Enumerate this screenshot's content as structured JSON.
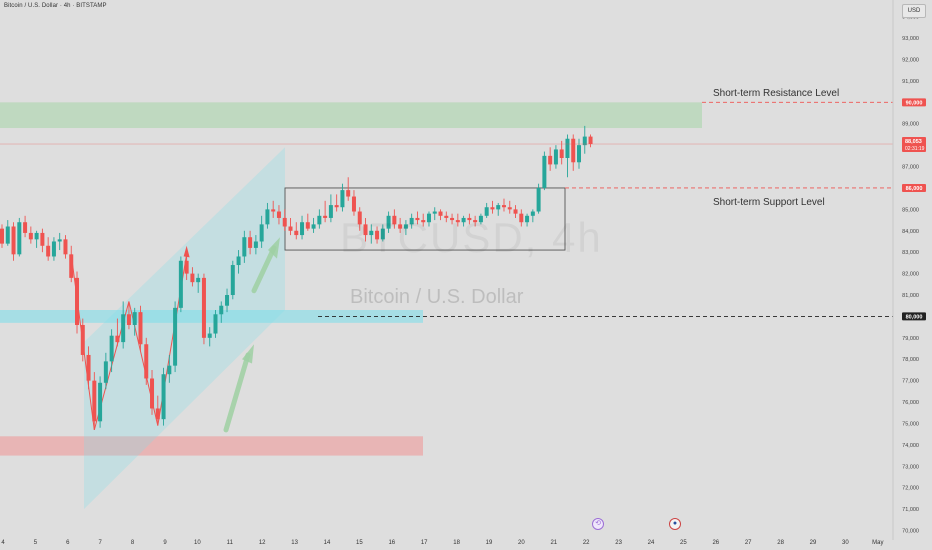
{
  "header": {
    "symbol_title": "Bitcoin / U.S. Dollar · 4h · BITSTAMP",
    "currency_label": "USD"
  },
  "watermark": {
    "ticker": "BTCUSD, 4h",
    "name": "Bitcoin / U.S. Dollar"
  },
  "annotations": {
    "resistance": "Short-term Resistance Level",
    "support": "Short-term Support Level"
  },
  "price_badges": {
    "resistance": "90,000",
    "current_price": "88,053",
    "countdown": "02:31:19",
    "support": "86,000",
    "key_level": "80,000"
  },
  "colors": {
    "up": "#26a69a",
    "down": "#ef5350",
    "resistance_zone": "#a5d6a7",
    "support_zone": "#ef9a9a",
    "channel": "#80deea"
  },
  "chart_data": {
    "type": "candlestick",
    "y_axis": {
      "ylim": [
        70000,
        94500
      ],
      "ticks": [
        "94,000",
        "93,000",
        "92,000",
        "91,000",
        "90,000",
        "89,000",
        "88,000",
        "87,000",
        "86,000",
        "85,000",
        "84,000",
        "83,000",
        "82,000",
        "81,000",
        "80,000",
        "79,000",
        "78,000",
        "77,000",
        "76,000",
        "75,000",
        "74,000",
        "73,000",
        "72,000",
        "71,000",
        "70,000"
      ]
    },
    "x_axis": {
      "ticks": [
        "4",
        "5",
        "6",
        "7",
        "8",
        "9",
        "10",
        "11",
        "12",
        "13",
        "14",
        "15",
        "16",
        "17",
        "18",
        "19",
        "20",
        "21",
        "22",
        "23",
        "24",
        "25",
        "26",
        "27",
        "28",
        "29",
        "30",
        "May"
      ]
    },
    "candles": [
      {
        "o": 84100,
        "h": 84300,
        "l": 83200,
        "c": 83400
      },
      {
        "o": 83400,
        "h": 84500,
        "l": 83300,
        "c": 84200
      },
      {
        "o": 84200,
        "h": 84400,
        "l": 82600,
        "c": 82900
      },
      {
        "o": 82900,
        "h": 84600,
        "l": 82800,
        "c": 84400
      },
      {
        "o": 84400,
        "h": 84700,
        "l": 83700,
        "c": 83900
      },
      {
        "o": 83900,
        "h": 84200,
        "l": 83400,
        "c": 83600
      },
      {
        "o": 83600,
        "h": 84000,
        "l": 83200,
        "c": 83900
      },
      {
        "o": 83900,
        "h": 84100,
        "l": 83000,
        "c": 83300
      },
      {
        "o": 83300,
        "h": 83700,
        "l": 82600,
        "c": 82800
      },
      {
        "o": 82800,
        "h": 83700,
        "l": 82600,
        "c": 83500
      },
      {
        "o": 83500,
        "h": 83900,
        "l": 83100,
        "c": 83600
      },
      {
        "o": 83600,
        "h": 83800,
        "l": 82700,
        "c": 82900
      },
      {
        "o": 82900,
        "h": 83300,
        "l": 81600,
        "c": 81800
      },
      {
        "o": 81800,
        "h": 82100,
        "l": 79200,
        "c": 79600
      },
      {
        "o": 79600,
        "h": 79900,
        "l": 77900,
        "c": 78200
      },
      {
        "o": 78200,
        "h": 78600,
        "l": 76600,
        "c": 77000
      },
      {
        "o": 77000,
        "h": 77400,
        "l": 74700,
        "c": 75100
      },
      {
        "o": 75100,
        "h": 77200,
        "l": 74800,
        "c": 76900
      },
      {
        "o": 76900,
        "h": 78300,
        "l": 76600,
        "c": 77900
      },
      {
        "o": 77900,
        "h": 79400,
        "l": 77400,
        "c": 79100
      },
      {
        "o": 79100,
        "h": 79900,
        "l": 78600,
        "c": 78800
      },
      {
        "o": 78800,
        "h": 80700,
        "l": 78500,
        "c": 80100
      },
      {
        "o": 80100,
        "h": 80600,
        "l": 79400,
        "c": 79600
      },
      {
        "o": 79600,
        "h": 80400,
        "l": 79100,
        "c": 80200
      },
      {
        "o": 80200,
        "h": 80500,
        "l": 78400,
        "c": 78700
      },
      {
        "o": 78700,
        "h": 79000,
        "l": 76800,
        "c": 77100
      },
      {
        "o": 77100,
        "h": 77500,
        "l": 75400,
        "c": 75700
      },
      {
        "o": 75700,
        "h": 76300,
        "l": 74900,
        "c": 75200
      },
      {
        "o": 75200,
        "h": 77600,
        "l": 74900,
        "c": 77300
      },
      {
        "o": 77300,
        "h": 78200,
        "l": 76900,
        "c": 77700
      },
      {
        "o": 77700,
        "h": 80700,
        "l": 77400,
        "c": 80400
      },
      {
        "o": 80400,
        "h": 82800,
        "l": 80200,
        "c": 82600
      },
      {
        "o": 82600,
        "h": 82900,
        "l": 81700,
        "c": 82000
      },
      {
        "o": 82000,
        "h": 82300,
        "l": 81400,
        "c": 81600
      },
      {
        "o": 81600,
        "h": 82000,
        "l": 81100,
        "c": 81800
      },
      {
        "o": 81800,
        "h": 82000,
        "l": 78700,
        "c": 79000
      },
      {
        "o": 79000,
        "h": 79500,
        "l": 78600,
        "c": 79200
      },
      {
        "o": 79200,
        "h": 80300,
        "l": 79000,
        "c": 80100
      },
      {
        "o": 80100,
        "h": 80700,
        "l": 79700,
        "c": 80500
      },
      {
        "o": 80500,
        "h": 81300,
        "l": 80200,
        "c": 81000
      },
      {
        "o": 81000,
        "h": 82600,
        "l": 80800,
        "c": 82400
      },
      {
        "o": 82400,
        "h": 83100,
        "l": 82000,
        "c": 82800
      },
      {
        "o": 82800,
        "h": 84000,
        "l": 82500,
        "c": 83700
      },
      {
        "o": 83700,
        "h": 84000,
        "l": 82900,
        "c": 83200
      },
      {
        "o": 83200,
        "h": 83800,
        "l": 82900,
        "c": 83500
      },
      {
        "o": 83500,
        "h": 84700,
        "l": 83200,
        "c": 84300
      },
      {
        "o": 84300,
        "h": 85300,
        "l": 84100,
        "c": 85000
      },
      {
        "o": 85000,
        "h": 85400,
        "l": 84600,
        "c": 84900
      },
      {
        "o": 84900,
        "h": 85200,
        "l": 84300,
        "c": 84600
      },
      {
        "o": 84600,
        "h": 85000,
        "l": 84000,
        "c": 84200
      },
      {
        "o": 84200,
        "h": 84600,
        "l": 83800,
        "c": 84000
      },
      {
        "o": 84000,
        "h": 84400,
        "l": 83600,
        "c": 83800
      },
      {
        "o": 83800,
        "h": 84700,
        "l": 83600,
        "c": 84400
      },
      {
        "o": 84400,
        "h": 84800,
        "l": 84000,
        "c": 84100
      },
      {
        "o": 84100,
        "h": 84600,
        "l": 83900,
        "c": 84300
      },
      {
        "o": 84300,
        "h": 85000,
        "l": 84100,
        "c": 84700
      },
      {
        "o": 84700,
        "h": 85400,
        "l": 84400,
        "c": 84600
      },
      {
        "o": 84600,
        "h": 85700,
        "l": 84400,
        "c": 85200
      },
      {
        "o": 85200,
        "h": 85700,
        "l": 84900,
        "c": 85100
      },
      {
        "o": 85100,
        "h": 86200,
        "l": 84900,
        "c": 85900
      },
      {
        "o": 85900,
        "h": 86500,
        "l": 85400,
        "c": 85600
      },
      {
        "o": 85600,
        "h": 85900,
        "l": 84700,
        "c": 84900
      },
      {
        "o": 84900,
        "h": 85100,
        "l": 84000,
        "c": 84300
      },
      {
        "o": 84300,
        "h": 84600,
        "l": 83500,
        "c": 83800
      },
      {
        "o": 83800,
        "h": 84300,
        "l": 83400,
        "c": 84000
      },
      {
        "o": 84000,
        "h": 84200,
        "l": 83400,
        "c": 83600
      },
      {
        "o": 83600,
        "h": 84300,
        "l": 83500,
        "c": 84100
      },
      {
        "o": 84100,
        "h": 84900,
        "l": 83900,
        "c": 84700
      },
      {
        "o": 84700,
        "h": 85000,
        "l": 84100,
        "c": 84300
      },
      {
        "o": 84300,
        "h": 84600,
        "l": 83900,
        "c": 84100
      },
      {
        "o": 84100,
        "h": 84500,
        "l": 83800,
        "c": 84300
      },
      {
        "o": 84300,
        "h": 84800,
        "l": 84100,
        "c": 84600
      },
      {
        "o": 84600,
        "h": 84900,
        "l": 84300,
        "c": 84500
      },
      {
        "o": 84500,
        "h": 84800,
        "l": 84200,
        "c": 84400
      },
      {
        "o": 84400,
        "h": 84900,
        "l": 84200,
        "c": 84800
      },
      {
        "o": 84800,
        "h": 85100,
        "l": 84500,
        "c": 84900
      },
      {
        "o": 84900,
        "h": 85000,
        "l": 84500,
        "c": 84700
      },
      {
        "o": 84700,
        "h": 84900,
        "l": 84400,
        "c": 84600
      },
      {
        "o": 84600,
        "h": 84800,
        "l": 84300,
        "c": 84500
      },
      {
        "o": 84500,
        "h": 84800,
        "l": 84200,
        "c": 84400
      },
      {
        "o": 84400,
        "h": 84700,
        "l": 84200,
        "c": 84600
      },
      {
        "o": 84600,
        "h": 84800,
        "l": 84300,
        "c": 84500
      },
      {
        "o": 84500,
        "h": 84700,
        "l": 84200,
        "c": 84400
      },
      {
        "o": 84400,
        "h": 84800,
        "l": 84300,
        "c": 84700
      },
      {
        "o": 84700,
        "h": 85300,
        "l": 84600,
        "c": 85100
      },
      {
        "o": 85100,
        "h": 85400,
        "l": 84800,
        "c": 85000
      },
      {
        "o": 85000,
        "h": 85300,
        "l": 84700,
        "c": 85200
      },
      {
        "o": 85200,
        "h": 85500,
        "l": 84900,
        "c": 85100
      },
      {
        "o": 85100,
        "h": 85400,
        "l": 84800,
        "c": 85000
      },
      {
        "o": 85000,
        "h": 85200,
        "l": 84600,
        "c": 84800
      },
      {
        "o": 84800,
        "h": 85000,
        "l": 84200,
        "c": 84400
      },
      {
        "o": 84400,
        "h": 84800,
        "l": 84200,
        "c": 84700
      },
      {
        "o": 84700,
        "h": 85000,
        "l": 84400,
        "c": 84900
      },
      {
        "o": 84900,
        "h": 86200,
        "l": 84800,
        "c": 86000
      },
      {
        "o": 86000,
        "h": 87700,
        "l": 85900,
        "c": 87500
      },
      {
        "o": 87500,
        "h": 87900,
        "l": 86800,
        "c": 87100
      },
      {
        "o": 87100,
        "h": 88000,
        "l": 86900,
        "c": 87800
      },
      {
        "o": 87800,
        "h": 88200,
        "l": 87100,
        "c": 87400
      },
      {
        "o": 87400,
        "h": 88500,
        "l": 86500,
        "c": 88300
      },
      {
        "o": 88300,
        "h": 88500,
        "l": 86800,
        "c": 87200
      },
      {
        "o": 87200,
        "h": 88300,
        "l": 86900,
        "c": 88000
      },
      {
        "o": 88000,
        "h": 88900,
        "l": 87600,
        "c": 88400
      },
      {
        "o": 88400,
        "h": 88500,
        "l": 87900,
        "c": 88053
      }
    ]
  }
}
